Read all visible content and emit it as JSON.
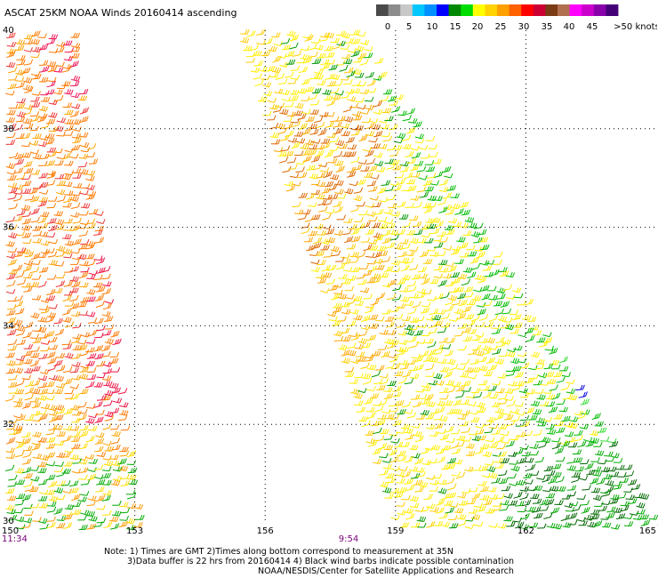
{
  "title": "ASCAT 25KM NOAA Winds 20160414 ascending",
  "legend": {
    "ticks": [
      "0",
      "5",
      "10",
      "15",
      "20",
      "25",
      "30",
      "35",
      "40",
      "45",
      ">50 knots"
    ],
    "colors": [
      "#4a4a4a",
      "#8c8c8c",
      "#c8c8c8",
      "#00c8ff",
      "#0090ff",
      "#0000ff",
      "#008800",
      "#00dd00",
      "#ffff00",
      "#ffd200",
      "#ffa000",
      "#ff6000",
      "#ff0000",
      "#cc0033",
      "#7a3c14",
      "#b07050",
      "#ff00ff",
      "#cc00cc",
      "#8800aa",
      "#440077"
    ]
  },
  "axes": {
    "lat_labels": [
      "40",
      "38",
      "36",
      "34",
      "32",
      "30"
    ],
    "lon_labels": [
      "150",
      "153",
      "156",
      "159",
      "162",
      "165"
    ]
  },
  "times": {
    "left": "11:34",
    "right": "9:54"
  },
  "notes": {
    "line1": "Note: 1) Times are GMT 2)Times along bottom correspond to measurement at 35N",
    "line2": "3)Data buffer is 22 hrs from 20160414 4) Black wind barbs indicate possible contamination",
    "line3": "NOAA/NESDIS/Center for Satellite Applications and Research"
  }
}
